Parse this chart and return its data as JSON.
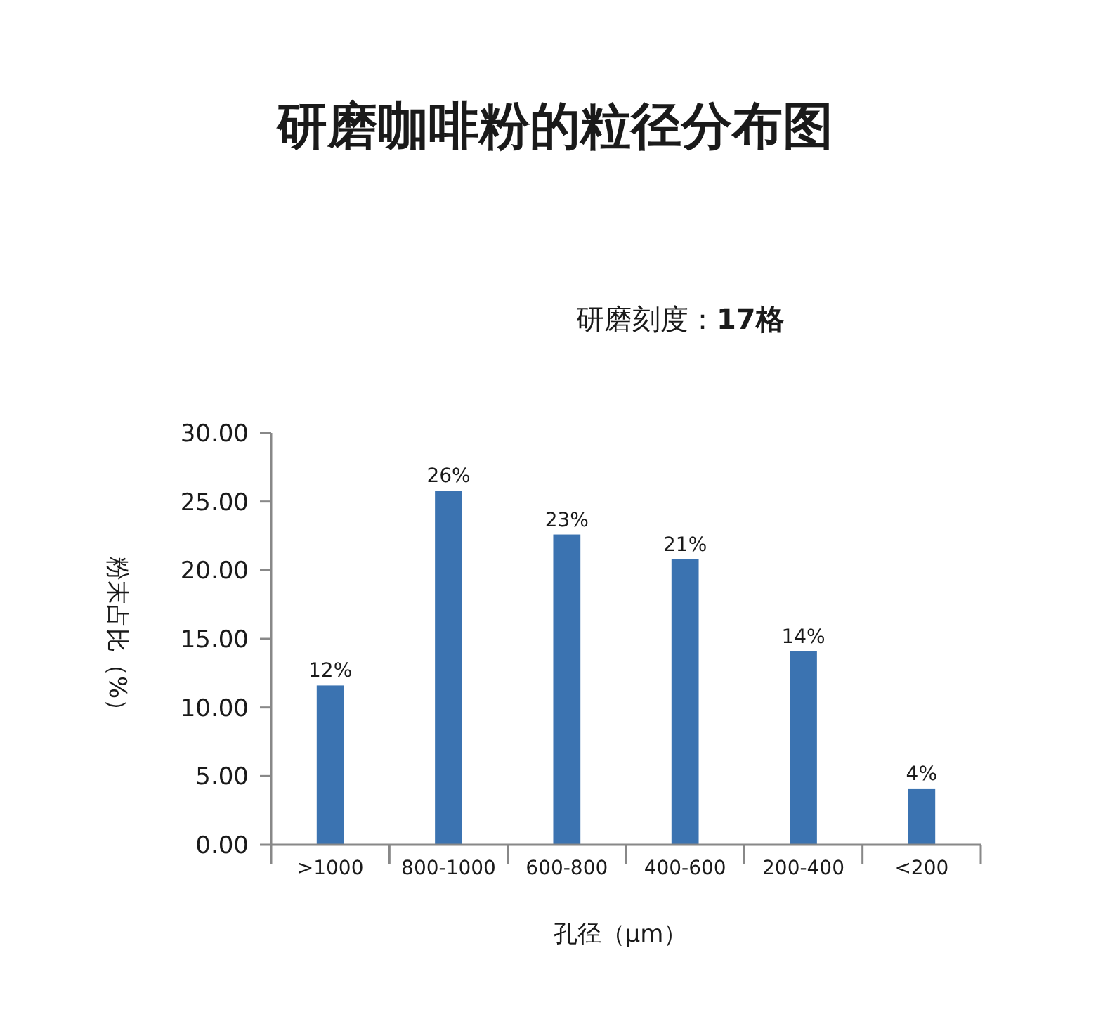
{
  "chart_data": {
    "type": "bar",
    "title": "研磨咖啡粉的粒径分布图",
    "annotations": [
      "研磨刻度：**17格**"
    ],
    "categories": [
      ">1000",
      "800-1000",
      "600-800",
      "400-600",
      "200-400",
      "<200"
    ],
    "values": [
      11.6,
      25.8,
      22.6,
      20.8,
      14.1,
      4.1
    ],
    "value_labels": [
      "12%",
      "26%",
      "23%",
      "21%",
      "14%",
      "4%"
    ],
    "color": "#3b73b1",
    "ylim": [
      0,
      30
    ],
    "yticks": [
      {
        "value": 0,
        "label": "0.00"
      },
      {
        "value": 5,
        "label": "5.00"
      },
      {
        "value": 10,
        "label": "10.00"
      },
      {
        "value": 15,
        "label": "15.00"
      },
      {
        "value": 20,
        "label": "20.00"
      },
      {
        "value": 25,
        "label": "25.00"
      },
      {
        "value": 30,
        "label": "30.00"
      }
    ],
    "xlabel": "孔径（μm）",
    "ylabel": "粉末占比（%）"
  }
}
